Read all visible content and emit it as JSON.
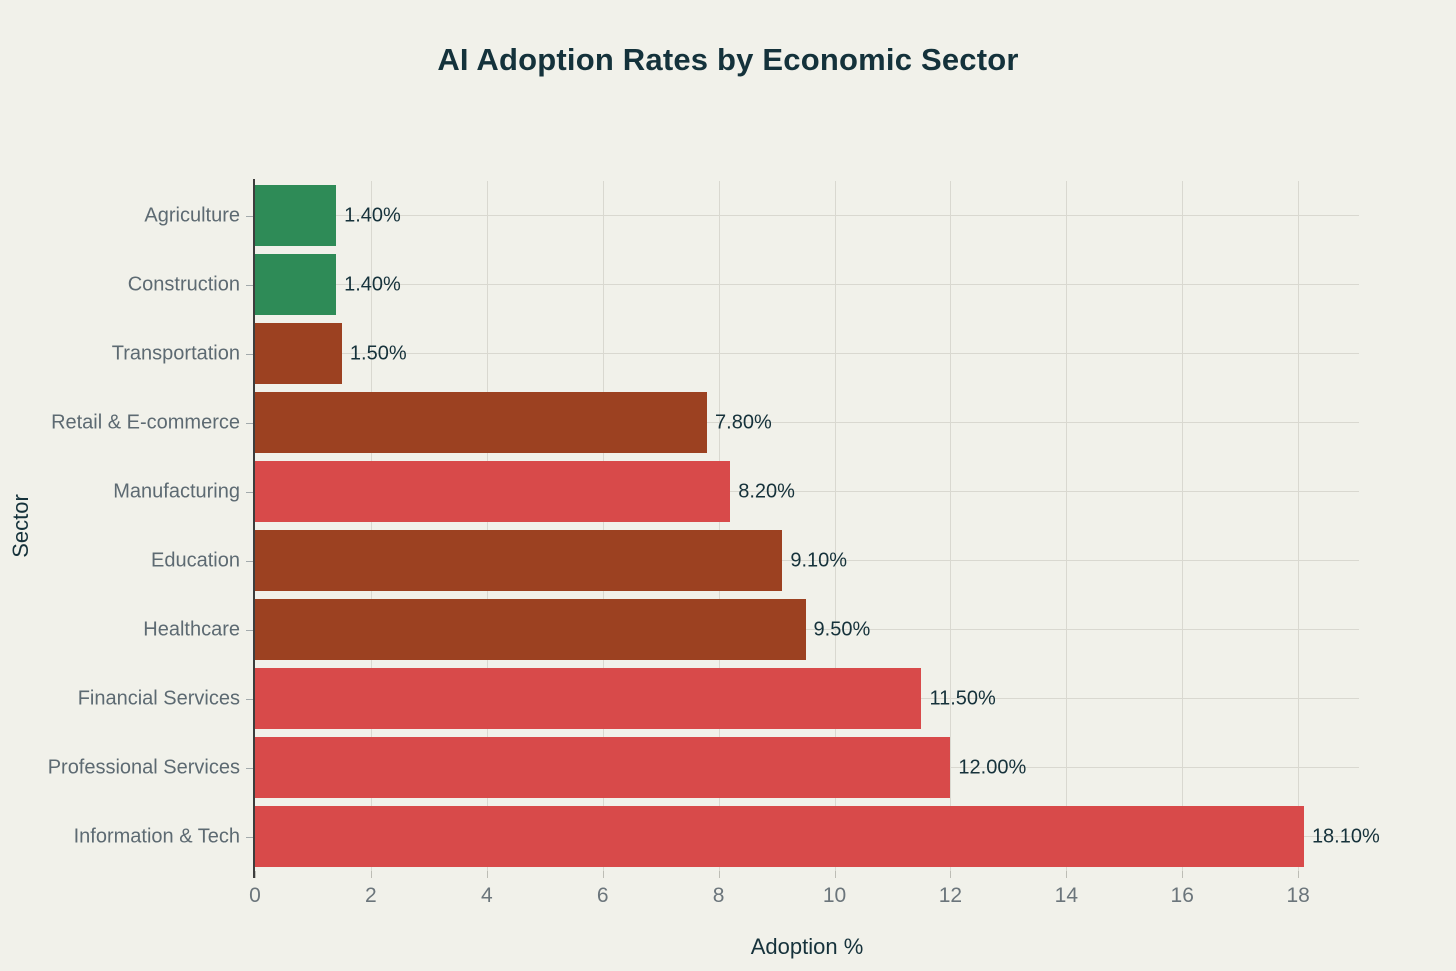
{
  "chart_data": {
    "type": "bar",
    "orientation": "horizontal",
    "title": "AI Adoption Rates by Economic Sector",
    "xlabel": "Adoption %",
    "ylabel": "Sector",
    "xlim": [
      0,
      19.05
    ],
    "xticks": [
      0,
      2,
      4,
      6,
      8,
      10,
      12,
      14,
      16,
      18
    ],
    "grid": "both",
    "legend": "none",
    "categories": [
      "Agriculture",
      "Construction",
      "Transportation",
      "Retail & E-commerce",
      "Manufacturing",
      "Education",
      "Healthcare",
      "Financial Services",
      "Professional Services",
      "Information & Tech"
    ],
    "values": [
      1.4,
      1.4,
      1.5,
      7.8,
      8.2,
      9.1,
      9.5,
      11.5,
      12.0,
      18.1
    ],
    "value_labels": [
      "1.40%",
      "1.40%",
      "1.50%",
      "7.80%",
      "8.20%",
      "9.10%",
      "9.50%",
      "11.50%",
      "12.00%",
      "18.10%"
    ],
    "bar_colors": [
      "#2e8b57",
      "#2e8b57",
      "#9c4121",
      "#9c4121",
      "#d84a4a",
      "#9c4121",
      "#9c4121",
      "#d84a4a",
      "#d84a4a",
      "#d84a4a"
    ]
  },
  "colors": {
    "background": "#f1f1ea",
    "title_text": "#14323b",
    "value_label_text": "#16323b",
    "category_label_text": "#5d6a72",
    "tick_label_text": "#6b757b",
    "gridline": "#d9d8d0",
    "axis_line": "#3d3d3d",
    "bar_green": "#2e8b57",
    "bar_dark_red": "#9c4121",
    "bar_red": "#d84a4a"
  }
}
